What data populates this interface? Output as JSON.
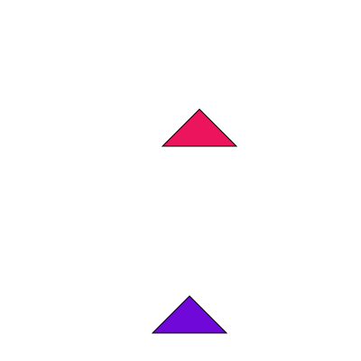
{
  "shapes": [
    {
      "name": "red-triangle",
      "type": "triangle",
      "fill": "#ec145c",
      "stroke": "#000000"
    },
    {
      "name": "purple-triangle",
      "type": "triangle",
      "fill": "#6f08d8",
      "stroke": "#000000"
    }
  ]
}
